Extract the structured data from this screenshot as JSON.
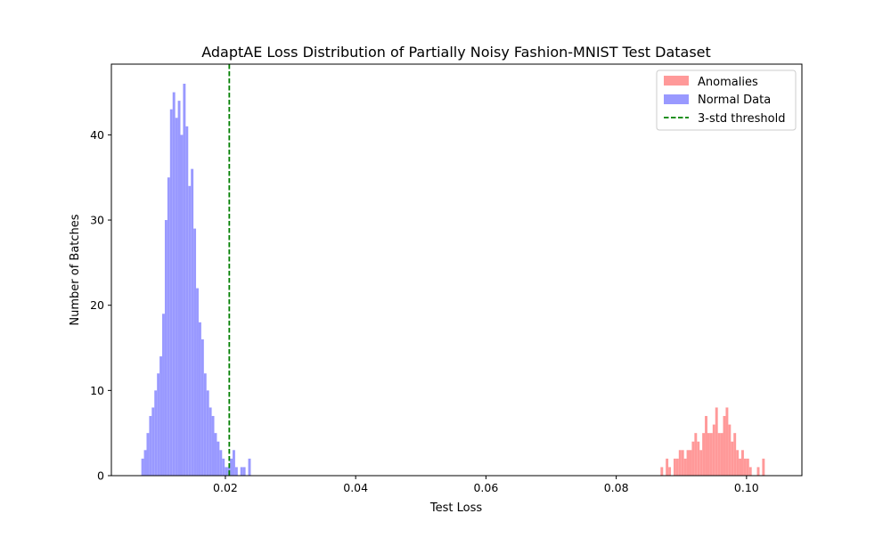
{
  "chart_data": {
    "type": "histogram",
    "title": "AdaptAE Loss Distribution of Partially Noisy Fashion-MNIST Test Dataset",
    "xlabel": "Test Loss",
    "ylabel": "Number of Batches",
    "xlim": [
      0.0025,
      0.1085
    ],
    "ylim": [
      0,
      48.3
    ],
    "xticks": [
      0.02,
      0.04,
      0.06,
      0.08,
      0.1
    ],
    "xtick_labels": [
      "0.02",
      "0.04",
      "0.06",
      "0.08",
      "0.10"
    ],
    "yticks": [
      0,
      10,
      20,
      30,
      40
    ],
    "ytick_labels": [
      "0",
      "10",
      "20",
      "30",
      "40"
    ],
    "grid": false,
    "legend_position": "upper right",
    "series": [
      {
        "name": "Anomalies",
        "color": "#ff9999",
        "bin_start": 0.0868,
        "bin_width": 0.0004,
        "values": [
          1,
          0,
          2,
          1,
          0,
          2,
          2,
          3,
          3,
          2,
          3,
          3,
          4,
          5,
          4,
          3,
          5,
          7,
          5,
          5,
          6,
          8,
          5,
          5,
          7,
          8,
          6,
          4,
          5,
          3,
          2,
          3,
          2,
          2,
          1,
          0,
          0,
          1,
          0,
          2
        ]
      },
      {
        "name": "Normal Data",
        "color": "#9999ff",
        "bin_start": 0.0071,
        "bin_width": 0.0004,
        "values": [
          2,
          3,
          5,
          7,
          8,
          10,
          12,
          14,
          19,
          30,
          35,
          43,
          45,
          42,
          44,
          40,
          46,
          41,
          34,
          36,
          29,
          22,
          18,
          16,
          12,
          10,
          8,
          7,
          5,
          4,
          3,
          2,
          1,
          1,
          2,
          3,
          1,
          0,
          1,
          1,
          0,
          2
        ]
      }
    ],
    "reference_lines": [
      {
        "name": "3-std threshold",
        "x": 0.0206,
        "color": "#008000",
        "style": "dashed"
      }
    ]
  }
}
